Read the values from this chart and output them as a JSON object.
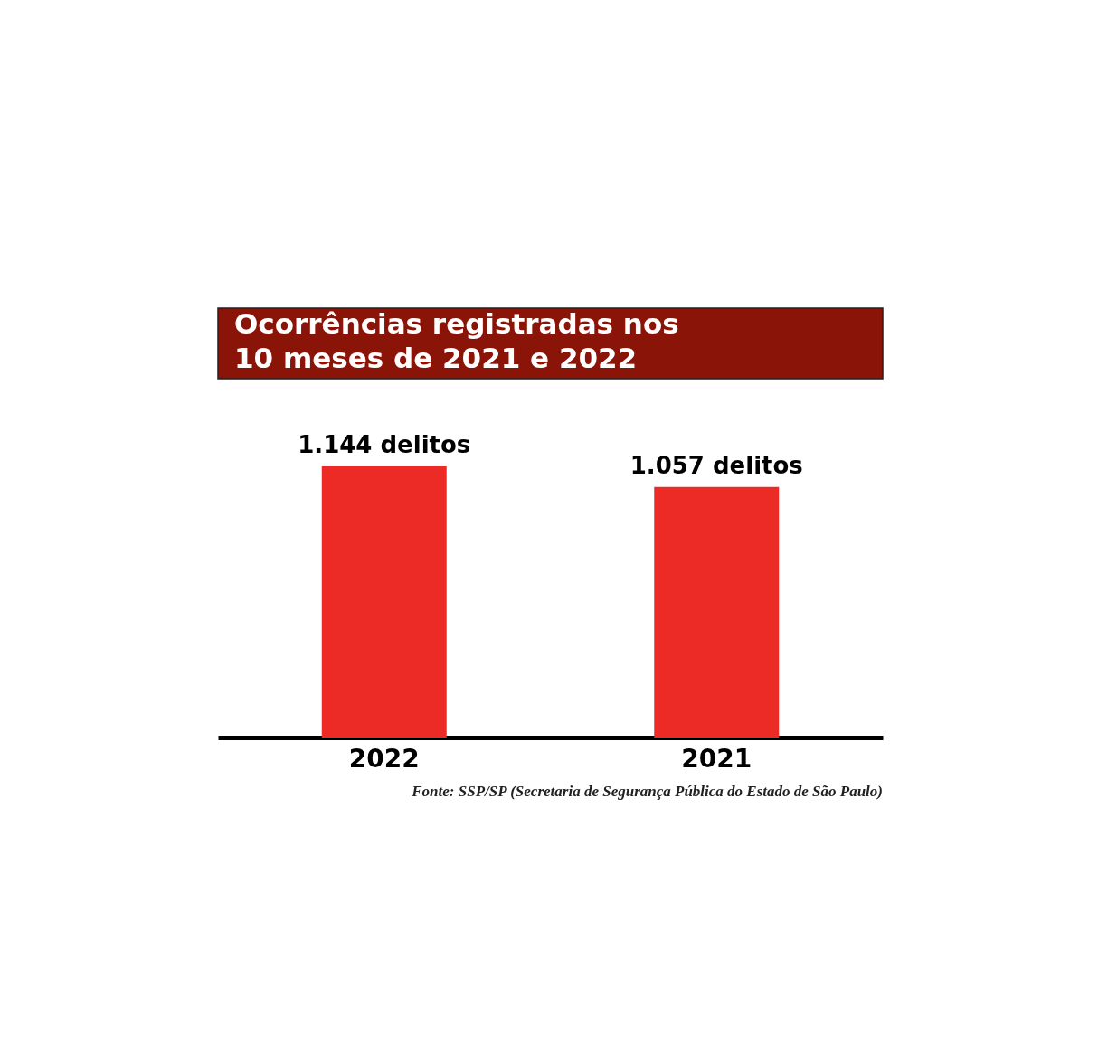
{
  "chart_data": {
    "type": "bar",
    "title": "Ocorrências registradas nos\n10 meses de 2021 e 2022",
    "categories": [
      "2022",
      "2021"
    ],
    "values": [
      1144,
      1057
    ],
    "value_labels": [
      "1.144 delitos",
      "1.057 delitos"
    ],
    "color": "#ec2a26",
    "grid": false,
    "annotations": [
      "Fonte: SSP/SP (Secretaria de Segurança Pública do Estado de São Paulo)"
    ]
  }
}
